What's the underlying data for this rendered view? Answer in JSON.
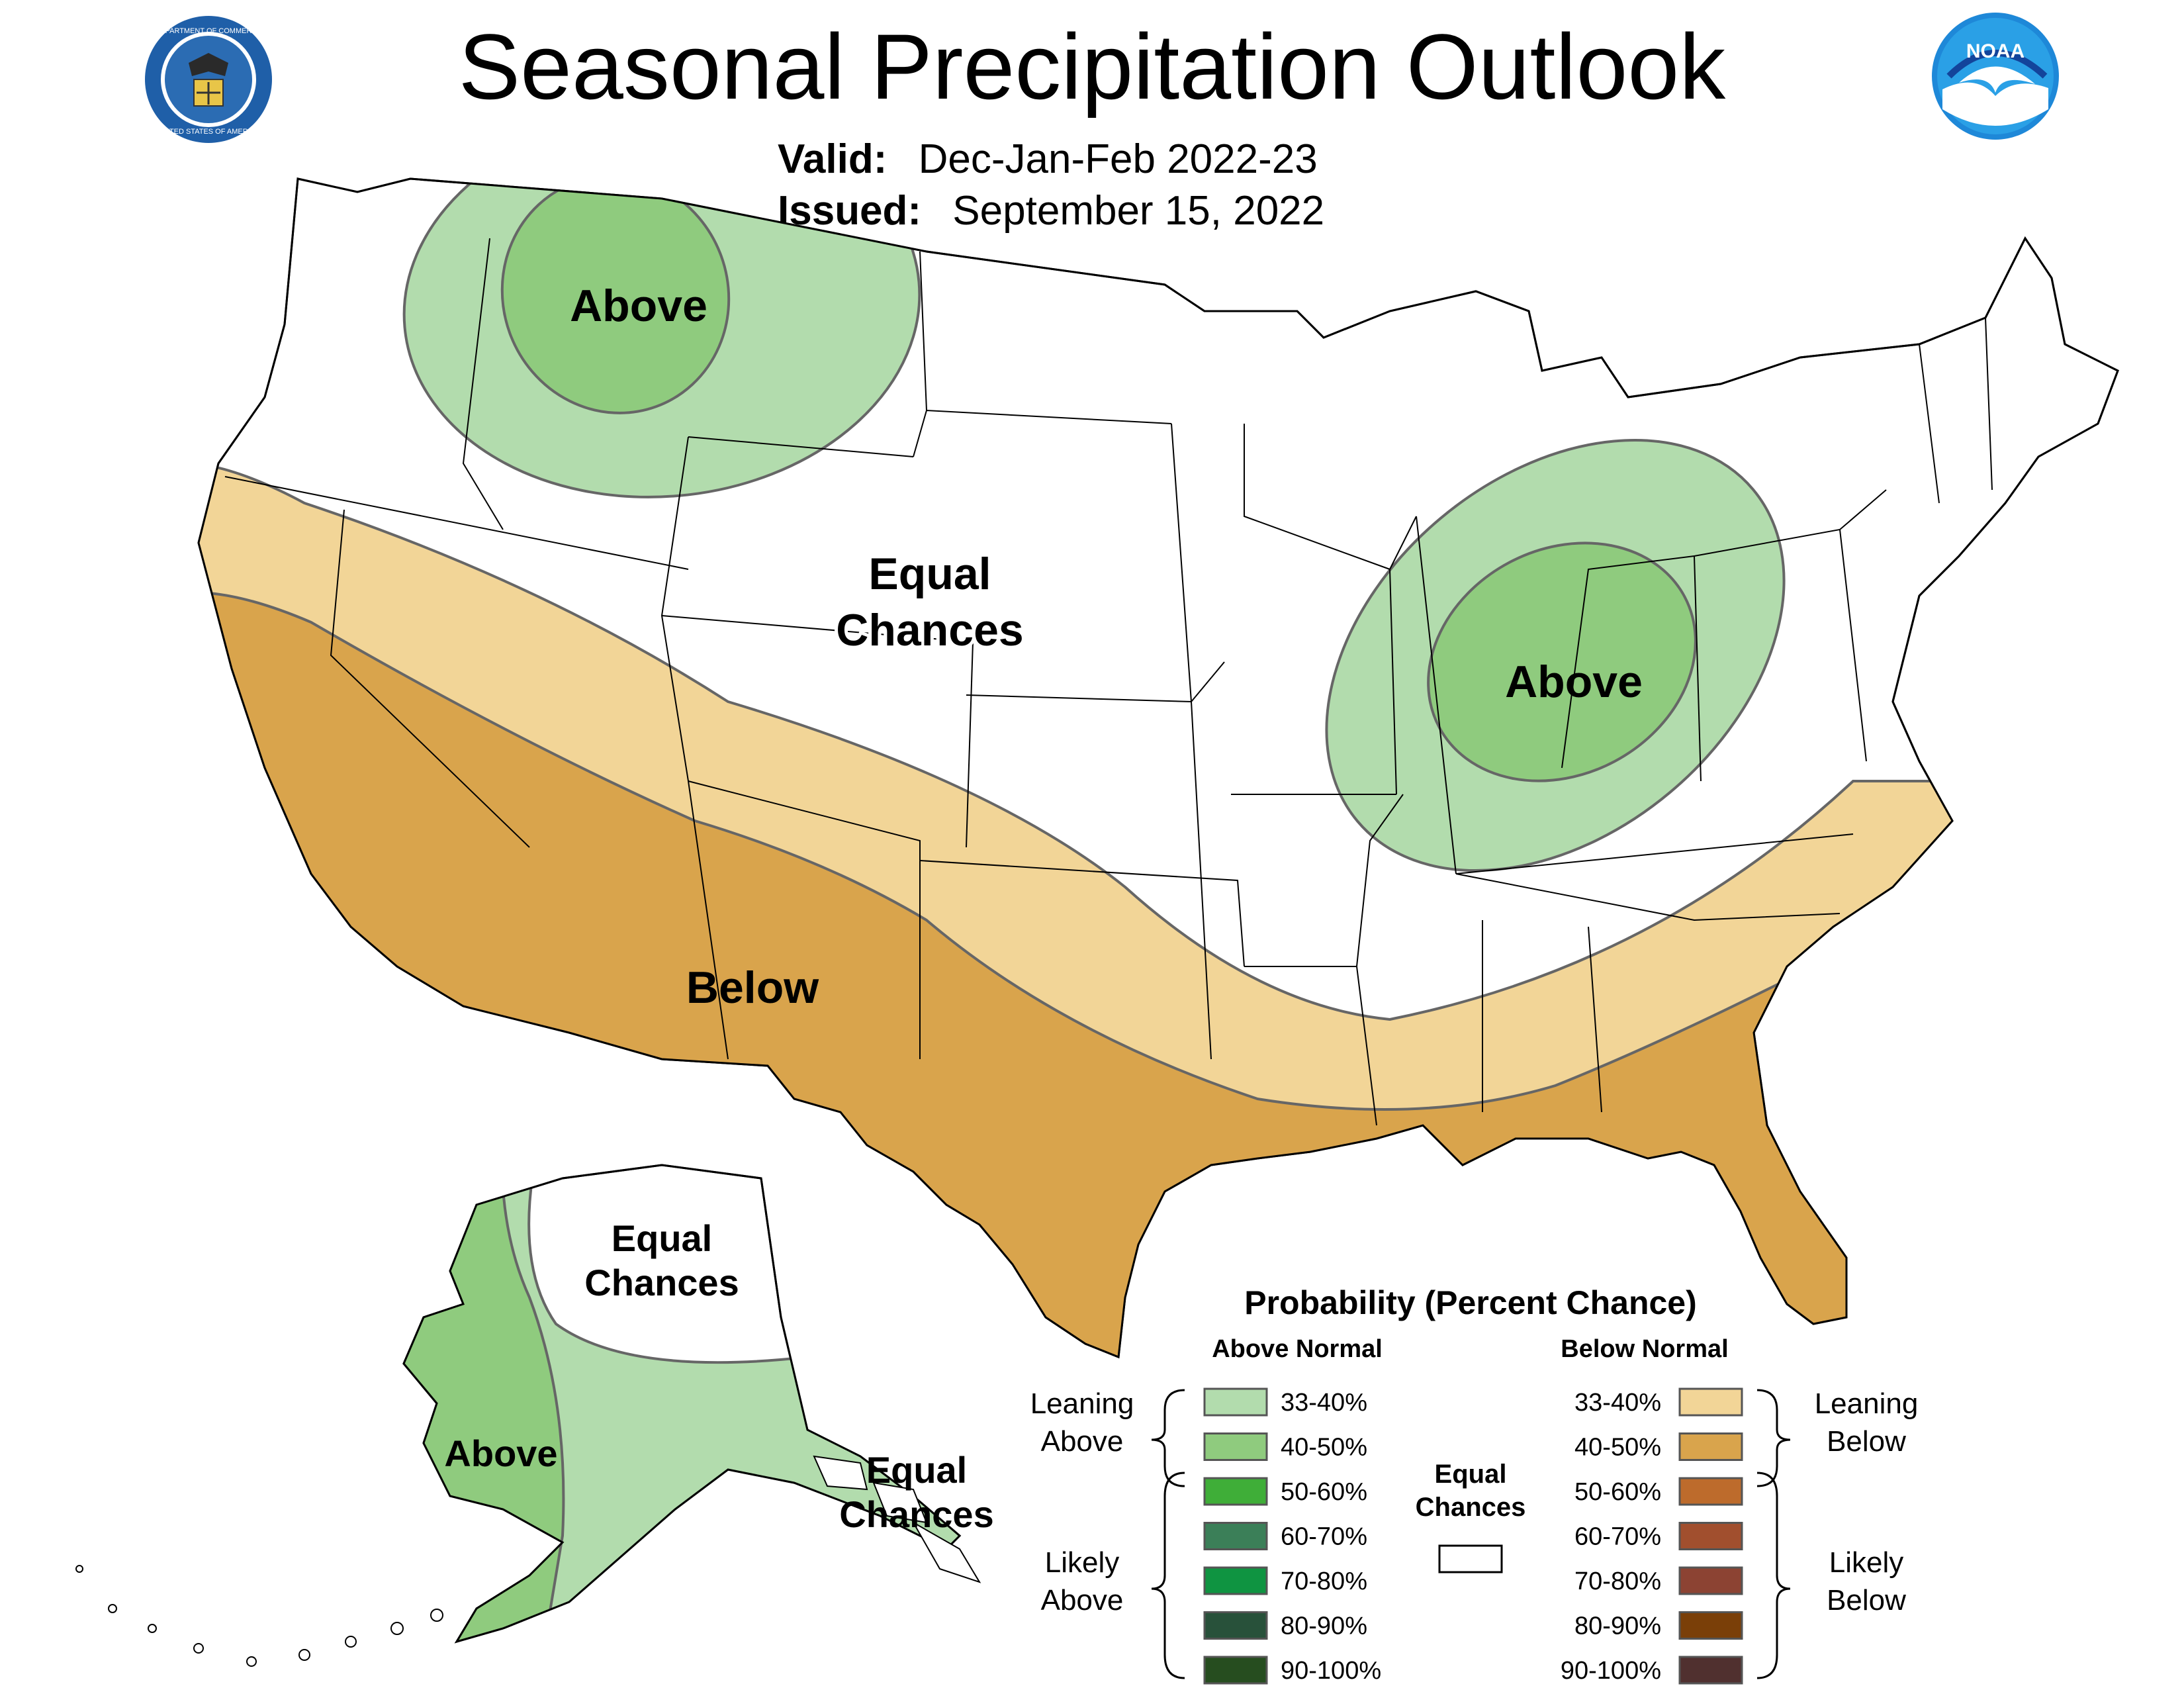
{
  "title": "Seasonal Precipitation Outlook",
  "valid_label": "Valid:",
  "valid_value": "Dec-Jan-Feb 2022-23",
  "issued_label": "Issued:",
  "issued_value": "September 15, 2022",
  "logos": {
    "left": "department-of-commerce-seal",
    "left_ring_text": "DEPARTMENT OF COMMERCE · UNITED STATES OF AMERICA",
    "right": "noaa-logo",
    "right_text": "NOAA"
  },
  "map_labels": {
    "nw_above": "Above",
    "equal_chances_line1": "Equal",
    "equal_chances_line2": "Chances",
    "midwest_above": "Above",
    "south_below": "Below",
    "ak_equal_line1": "Equal",
    "ak_equal_line2": "Chances",
    "ak_above": "Above",
    "se_ak_equal_line1": "Equal",
    "se_ak_equal_line2": "Chances"
  },
  "legend": {
    "title": "Probability (Percent Chance)",
    "above_header": "Above Normal",
    "below_header": "Below Normal",
    "leaning_above_1": "Leaning",
    "leaning_above_2": "Above",
    "likely_above_1": "Likely",
    "likely_above_2": "Above",
    "leaning_below_1": "Leaning",
    "leaning_below_2": "Below",
    "likely_below_1": "Likely",
    "likely_below_2": "Below",
    "equal_1": "Equal",
    "equal_2": "Chances",
    "above_bins": [
      {
        "label": "33-40%",
        "color": "#b2dcad"
      },
      {
        "label": "40-50%",
        "color": "#8fcb7e"
      },
      {
        "label": "50-60%",
        "color": "#3fae38"
      },
      {
        "label": "60-70%",
        "color": "#3b7f58"
      },
      {
        "label": "70-80%",
        "color": "#0f9441"
      },
      {
        "label": "80-90%",
        "color": "#28513a"
      },
      {
        "label": "90-100%",
        "color": "#264d1f"
      }
    ],
    "below_bins": [
      {
        "label": "33-40%",
        "color": "#f2d597"
      },
      {
        "label": "40-50%",
        "color": "#d9a44c"
      },
      {
        "label": "50-60%",
        "color": "#bd6b2c"
      },
      {
        "label": "60-70%",
        "color": "#a14f2e"
      },
      {
        "label": "70-80%",
        "color": "#8c4333"
      },
      {
        "label": "80-90%",
        "color": "#7a3f08"
      },
      {
        "label": "90-100%",
        "color": "#50302f"
      }
    ],
    "equal_color": "#ffffff"
  }
}
